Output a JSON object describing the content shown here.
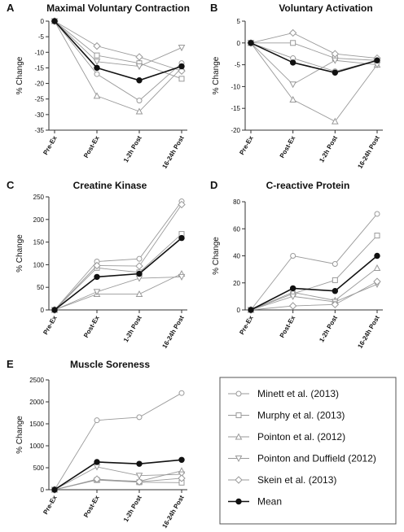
{
  "legend": {
    "entries": [
      {
        "name": "Minett et al. (2013)",
        "marker": "circle"
      },
      {
        "name": "Murphy et al. (2013)",
        "marker": "square"
      },
      {
        "name": "Pointon et al. (2012)",
        "marker": "triangle-up"
      },
      {
        "name": "Pointon and Duffield (2012)",
        "marker": "triangle-down"
      },
      {
        "name": "Skein et al. (2013)",
        "marker": "diamond"
      },
      {
        "name": "Mean",
        "marker": "filled-circle"
      }
    ]
  },
  "colors": {
    "study_line": "#9a9a9a",
    "mean_line": "#111111",
    "axis": "#333333"
  },
  "chart_data": [
    {
      "type": "line",
      "letter": "A",
      "title": "Maximal Voluntary Contraction",
      "ylabel": "% Change",
      "ylim": [
        -35,
        0
      ],
      "yticks": [
        0,
        -5,
        -10,
        -15,
        -20,
        -25,
        -30,
        -35
      ],
      "categories": [
        "Pre-Ex",
        "Post-Ex",
        "1-2h Post",
        "16-24h Post"
      ],
      "series": [
        {
          "name": "Minett et al. (2013)",
          "values": [
            0,
            -17,
            -25.5,
            -13.5
          ]
        },
        {
          "name": "Murphy et al. (2013)",
          "values": [
            0,
            -11,
            -13.5,
            -18.5
          ]
        },
        {
          "name": "Pointon et al. (2012)",
          "values": [
            0,
            -24,
            -29,
            -15
          ]
        },
        {
          "name": "Pointon and Duffield (2012)",
          "values": [
            0,
            -13,
            -14.5,
            -8.5
          ]
        },
        {
          "name": "Skein et al. (2013)",
          "values": [
            0,
            -8,
            -11.5,
            -16
          ]
        },
        {
          "name": "Mean",
          "values": [
            0,
            -15,
            -19,
            -14.5
          ]
        }
      ]
    },
    {
      "type": "line",
      "letter": "B",
      "title": "Voluntary Activation",
      "ylabel": "% Change",
      "ylim": [
        -20,
        5
      ],
      "yticks": [
        5,
        0,
        -5,
        -10,
        -15,
        -20
      ],
      "categories": [
        "Pre-Ex",
        "Post-Ex",
        "1-2h Post",
        "16-24h Post"
      ],
      "series": [
        {
          "name": "Minett et al. (2013)",
          "values": [
            0,
            -3.5,
            -6.5,
            -4
          ]
        },
        {
          "name": "Murphy et al. (2013)",
          "values": [
            0,
            0,
            -3.5,
            -4
          ]
        },
        {
          "name": "Pointon et al. (2012)",
          "values": [
            0,
            -13,
            -18,
            -5
          ]
        },
        {
          "name": "Pointon and Duffield (2012)",
          "values": [
            0,
            -9.5,
            -4,
            -5
          ]
        },
        {
          "name": "Skein et al. (2013)",
          "values": [
            0,
            2.3,
            -2.5,
            -3.5
          ]
        },
        {
          "name": "Mean",
          "values": [
            0,
            -4.5,
            -6.8,
            -4
          ]
        }
      ]
    },
    {
      "type": "line",
      "letter": "C",
      "title": "Creatine Kinase",
      "ylabel": "% Change",
      "ylim": [
        0,
        250
      ],
      "yticks": [
        0,
        50,
        100,
        150,
        200,
        250
      ],
      "categories": [
        "Pre-Ex",
        "Post-Ex",
        "1-2h Post",
        "16-24h Post"
      ],
      "series": [
        {
          "name": "Minett et al. (2013)",
          "values": [
            0,
            107,
            113,
            240
          ]
        },
        {
          "name": "Murphy et al. (2013)",
          "values": [
            0,
            93,
            83,
            168
          ]
        },
        {
          "name": "Pointon et al. (2012)",
          "values": [
            0,
            35,
            35,
            80
          ]
        },
        {
          "name": "Pointon and Duffield (2012)",
          "values": [
            0,
            40,
            70,
            73
          ]
        },
        {
          "name": "Skein et al. (2013)",
          "values": [
            0,
            98,
            97,
            233
          ]
        },
        {
          "name": "Mean",
          "values": [
            0,
            73,
            80,
            159
          ]
        }
      ]
    },
    {
      "type": "line",
      "letter": "D",
      "title": "C-reactive Protein",
      "ylabel": "% Change",
      "ylim": [
        0,
        80
      ],
      "yticks": [
        0,
        20,
        40,
        60,
        80
      ],
      "categories": [
        "Pre-Ex",
        "Post-Ex",
        "1-2h Post",
        "16-24h Post"
      ],
      "series": [
        {
          "name": "Minett et al. (2013)",
          "values": [
            0,
            40,
            34,
            71
          ]
        },
        {
          "name": "Murphy et al. (2013)",
          "values": [
            0,
            12,
            22,
            55
          ]
        },
        {
          "name": "Pointon et al. (2012)",
          "values": [
            0,
            13,
            7,
            31
          ]
        },
        {
          "name": "Pointon and Duffield (2012)",
          "values": [
            0,
            10,
            6,
            19
          ]
        },
        {
          "name": "Skein et al. (2013)",
          "values": [
            0,
            3,
            4,
            21
          ]
        },
        {
          "name": "Mean",
          "values": [
            0,
            16,
            14,
            40
          ]
        }
      ]
    },
    {
      "type": "line",
      "letter": "E",
      "title": "Muscle Soreness",
      "ylabel": "% Change",
      "ylim": [
        0,
        2500
      ],
      "yticks": [
        0,
        500,
        1000,
        1500,
        2000,
        2500
      ],
      "categories": [
        "Pre-Ex",
        "Post-Ex",
        "1-2h Post",
        "16-24h Post"
      ],
      "series": [
        {
          "name": "Minett et al. (2013)",
          "values": [
            0,
            1580,
            1650,
            2200
          ]
        },
        {
          "name": "Murphy et al. (2013)",
          "values": [
            0,
            220,
            170,
            160
          ]
        },
        {
          "name": "Pointon et al. (2012)",
          "values": [
            0,
            230,
            190,
            430
          ]
        },
        {
          "name": "Pointon and Duffield (2012)",
          "values": [
            0,
            520,
            320,
            350
          ]
        },
        {
          "name": "Skein et al. (2013)",
          "values": [
            0,
            240,
            180,
            260
          ]
        },
        {
          "name": "Mean",
          "values": [
            0,
            630,
            590,
            680
          ]
        }
      ]
    }
  ]
}
